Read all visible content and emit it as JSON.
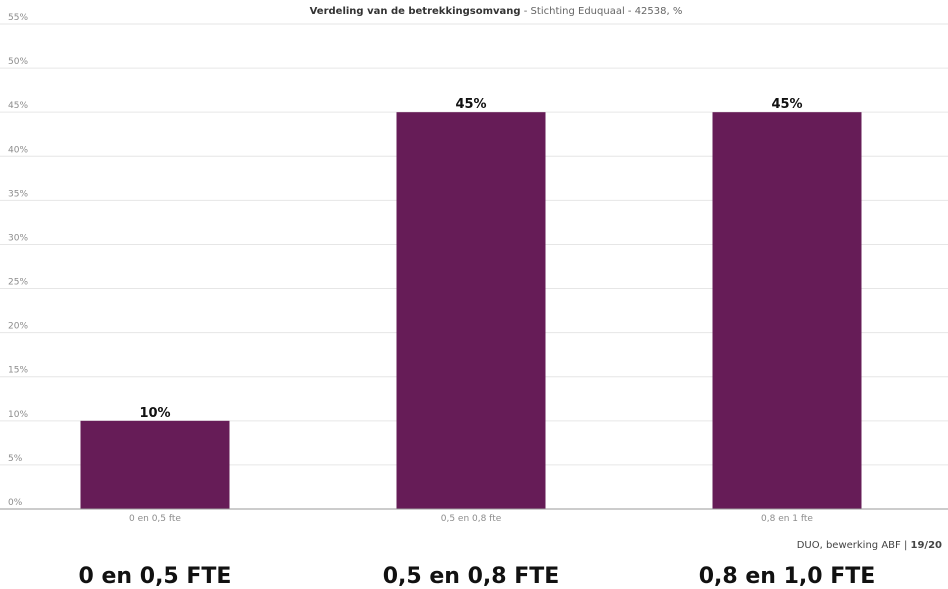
{
  "chart_data": {
    "type": "bar",
    "title": "Verdeling van de betrekkingsomvang",
    "subtitle": " - Stichting Eduquaal - 42538, %",
    "categories": [
      "0 en 0,5 fte",
      "0,5 en 0,8 fte",
      "0,8 en 1 fte"
    ],
    "values": [
      10,
      45,
      45
    ],
    "data_labels": [
      "10%",
      "45%",
      "45%"
    ],
    "y_ticks": [
      0,
      5,
      10,
      15,
      20,
      25,
      30,
      35,
      40,
      45,
      50,
      55
    ],
    "y_tick_suffix": "%",
    "ylim": [
      0,
      55
    ],
    "grid": true,
    "bar_color": "#661c57",
    "source": "DUO, bewerking ABF | ",
    "source_bold": "19/20"
  },
  "big_labels": [
    "0 en 0,5 FTE",
    "0,5 en 0,8 FTE",
    "0,8 en 1,0 FTE"
  ]
}
